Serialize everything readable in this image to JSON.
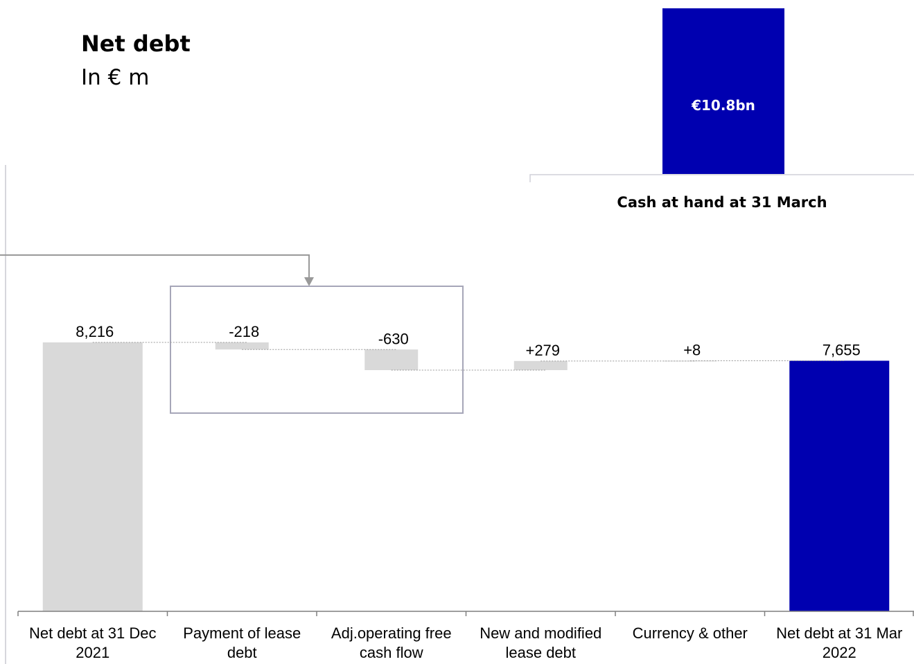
{
  "header": {
    "title": "Net debt",
    "subtitle": "In € m"
  },
  "cash_panel": {
    "value": "€10.8bn",
    "caption": "Cash at hand at 31 March"
  },
  "colors": {
    "total_bar": "#d9d9d9",
    "delta_bar": "#d9d9d9",
    "final_bar": "#0000b0",
    "connector": "#999999",
    "frame": "#a6a6b8"
  },
  "chart_data": {
    "type": "bar",
    "subtype": "waterfall",
    "title": "Net debt",
    "unit": "€ m",
    "categories": [
      "Net debt at 31 Dec 2021",
      "Payment of lease debt",
      "Adj.operating free cash flow",
      "New and modified lease debt",
      "Currency & other",
      "Net debt at 31 Mar 2022"
    ],
    "category_lines": [
      [
        "Net debt at 31 Dec",
        "2021"
      ],
      [
        "Payment of lease",
        "debt"
      ],
      [
        "Adj.operating free",
        "cash flow"
      ],
      [
        "New and modified",
        "lease debt"
      ],
      [
        "Currency & other"
      ],
      [
        "Net debt at 31 Mar",
        "2022"
      ]
    ],
    "values": [
      8216,
      -218,
      -630,
      279,
      8,
      7655
    ],
    "kinds": [
      "total",
      "delta",
      "delta",
      "delta",
      "delta",
      "total"
    ],
    "labels": [
      "8,216",
      "-218",
      "-630",
      "+279",
      "+8",
      "7,655"
    ],
    "highlighted_group": [
      1,
      2
    ],
    "legend": "none",
    "grid": false
  }
}
